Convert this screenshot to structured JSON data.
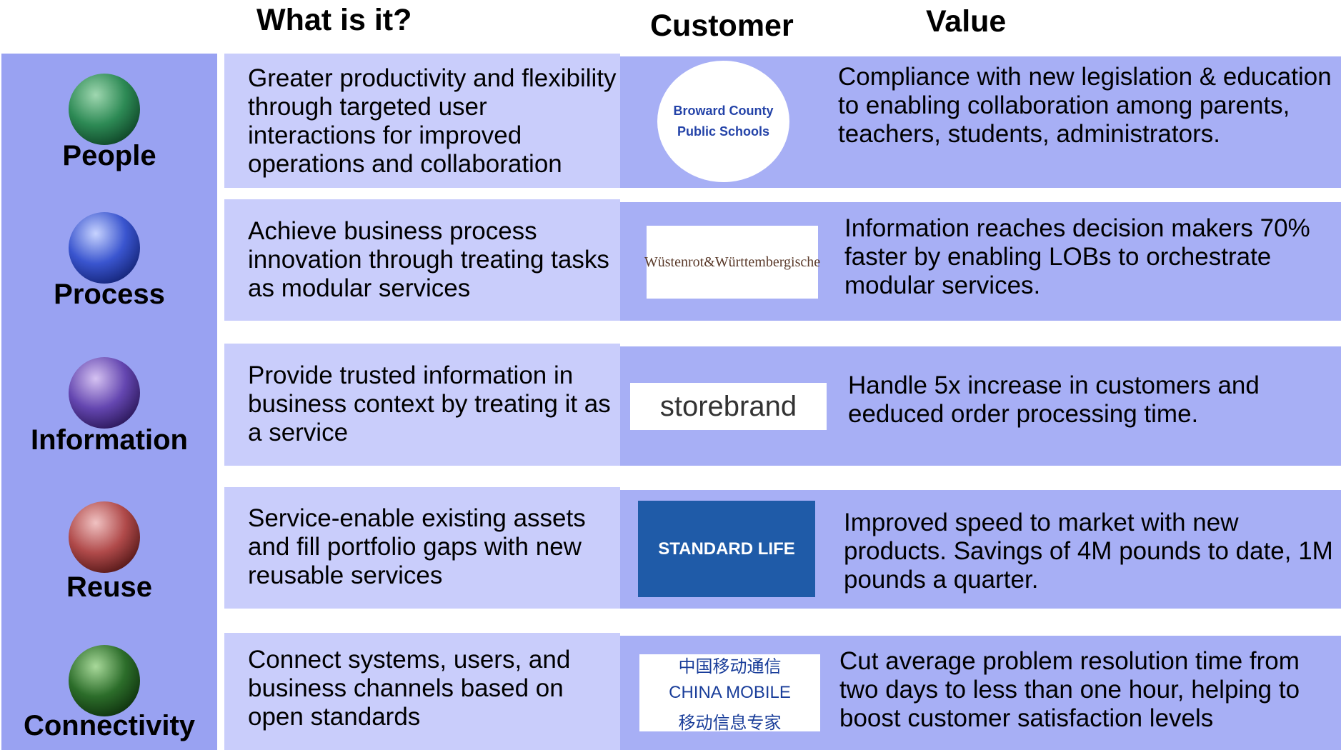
{
  "header": {
    "what": "What is it?",
    "customer": "Customer",
    "value": "Value"
  },
  "rows": [
    {
      "label": "People",
      "what": "Greater productivity and flexibility through targeted user interactions for improved operations and collaboration",
      "logo": [
        "Broward County",
        "Public Schools"
      ],
      "value": "Compliance with new legislation & education to enabling collaboration among parents, teachers, students, administrators."
    },
    {
      "label": "Process",
      "what": "Achieve business process innovation through treating tasks as modular services",
      "logo": [
        "Wüstenrot&Württembergische"
      ],
      "value": "Information reaches decision makers 70% faster by enabling LOBs to orchestrate modular services."
    },
    {
      "label": "Information",
      "what": "Provide trusted information in business context by treating it as a service",
      "logo": [
        "storebrand"
      ],
      "value": "Handle 5x increase in customers and eeduced order processing time."
    },
    {
      "label": "Reuse",
      "what": "Service-enable existing assets and fill portfolio gaps with new reusable services",
      "logo": [
        "STANDARD LIFE"
      ],
      "value": "Improved speed to market with new products. Savings of 4M pounds to date, 1M pounds a quarter."
    },
    {
      "label": "Connectivity",
      "what": "Connect systems, users, and business channels based on open standards",
      "logo": [
        "中国移动通信",
        "CHINA MOBILE",
        "移动信息专家"
      ],
      "value": "Cut average problem resolution time from two days to less than one hour, helping to boost customer satisfaction levels"
    }
  ]
}
